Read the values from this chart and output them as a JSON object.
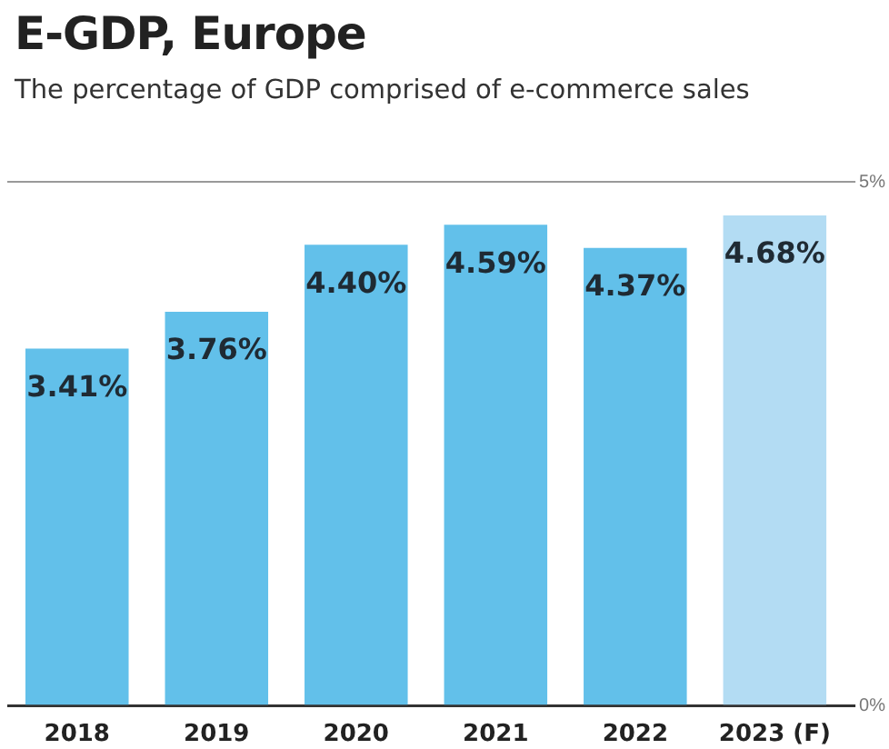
{
  "chart_data": {
    "type": "bar",
    "title": "E-GDP, Europe",
    "subtitle": "The percentage of GDP comprised of e-commerce sales",
    "categories": [
      "2018",
      "2019",
      "2020",
      "2021",
      "2022",
      "2023 (F)"
    ],
    "values": [
      3.41,
      3.76,
      4.4,
      4.59,
      4.37,
      4.68
    ],
    "colors": [
      "#62c0ea",
      "#62c0ea",
      "#62c0ea",
      "#62c0ea",
      "#62c0ea",
      "#b3dcf3"
    ],
    "value_labels": [
      "3.41%",
      "3.76%",
      "4.40%",
      "4.59%",
      "4.37%",
      "4.68%"
    ],
    "ylim": [
      0,
      5
    ],
    "yticks": [
      {
        "value": 0,
        "label": "0%"
      },
      {
        "value": 5,
        "label": "5%"
      }
    ]
  }
}
